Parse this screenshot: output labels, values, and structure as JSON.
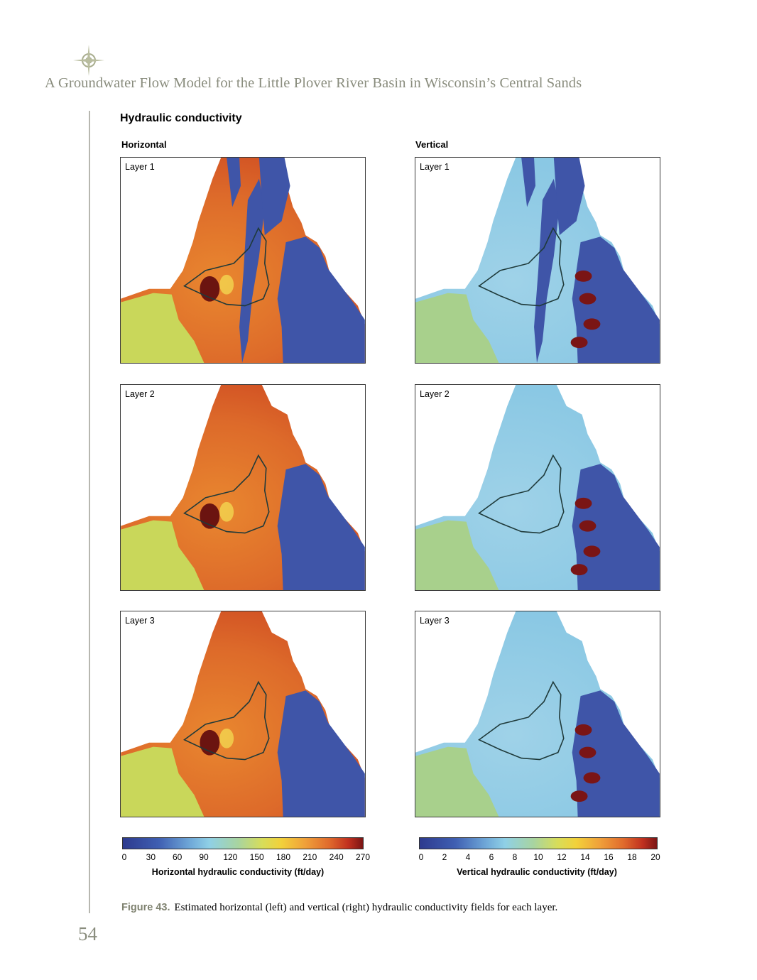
{
  "header": {
    "running_title": "A Groundwater Flow Model for the Little Plover River Basin in Wisconsin’s Central Sands",
    "page_number": "54"
  },
  "figure": {
    "heading": "Hydraulic conductivity",
    "columns": [
      {
        "label": "Horizontal"
      },
      {
        "label": "Vertical"
      }
    ],
    "layers": [
      "Layer 1",
      "Layer 2",
      "Layer 3"
    ],
    "colorbars": [
      {
        "title": "Horizontal hydraulic conductivity (ft/day)",
        "ticks": [
          "0",
          "30",
          "60",
          "90",
          "120",
          "150",
          "180",
          "210",
          "240",
          "270"
        ]
      },
      {
        "title": "Vertical hydraulic conductivity (ft/day)",
        "ticks": [
          "0",
          "2",
          "4",
          "6",
          "8",
          "10",
          "12",
          "14",
          "16",
          "18",
          "20"
        ]
      }
    ],
    "caption_number": "Figure 43.",
    "caption_text": "Estimated horizontal (left) and vertical (right) hydraulic conductivity fields for each layer."
  },
  "colors": {
    "header_text": "#8a8d7e",
    "low": "#2d3a8e",
    "mid": "#8fd0e6",
    "green": "#a8d4a0",
    "high": "#7a1515"
  }
}
